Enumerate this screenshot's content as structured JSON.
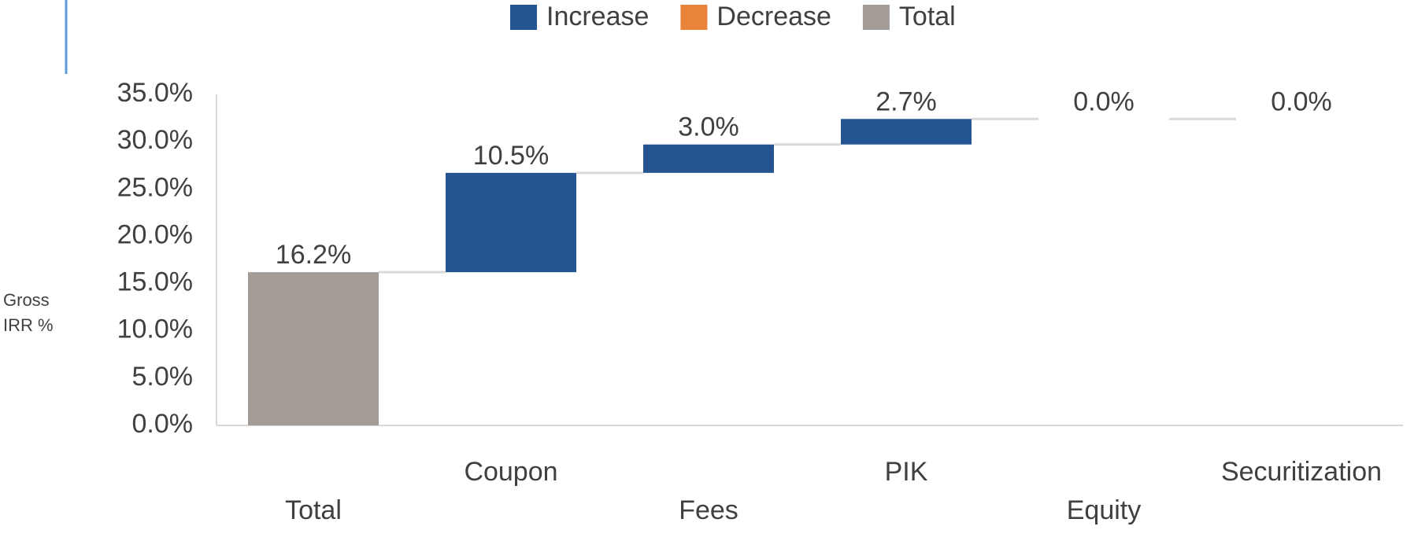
{
  "chart_data": {
    "type": "waterfall",
    "y_label": "Gross IRR %",
    "categories": [
      "Total",
      "Coupon",
      "Fees",
      "PIK",
      "Equity",
      "Securitization"
    ],
    "series": [
      {
        "name": "Increase",
        "color": "#245592",
        "values": [
          null,
          10.5,
          3.0,
          2.7,
          0.0,
          0.0
        ],
        "value_labels": [
          null,
          "10.5%",
          "3.0%",
          "2.7%",
          "0.0%",
          "0.0%"
        ]
      },
      {
        "name": "Decrease",
        "color": "#e8843a",
        "values": [
          null,
          null,
          null,
          null,
          null,
          null
        ]
      },
      {
        "name": "Total",
        "color": "#a29b96",
        "values": [
          16.2,
          null,
          null,
          null,
          null,
          null
        ],
        "value_labels": [
          "16.2%",
          null,
          null,
          null,
          null,
          null
        ]
      }
    ],
    "ylim": [
      0,
      35
    ],
    "yticks": [
      {
        "value": 0,
        "label": "0.0%"
      },
      {
        "value": 5,
        "label": "5.0%"
      },
      {
        "value": 10,
        "label": "10.0%"
      },
      {
        "value": 15,
        "label": "15.0%"
      },
      {
        "value": 20,
        "label": "20.0%"
      },
      {
        "value": 25,
        "label": "25.0%"
      },
      {
        "value": 30,
        "label": "30.0%"
      },
      {
        "value": 35,
        "label": "35.0%"
      }
    ],
    "grid": false
  }
}
